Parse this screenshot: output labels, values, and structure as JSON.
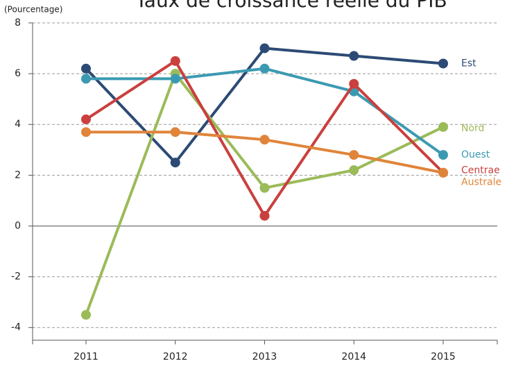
{
  "chart_data": {
    "type": "line",
    "title": "Taux de croissance réelle du PIB",
    "y_axis_label": "(Pourcentage)",
    "categories": [
      "2011",
      "2012",
      "2013",
      "2014",
      "2015"
    ],
    "series": [
      {
        "name": "Est",
        "color": "#2c4a75",
        "values": [
          6.2,
          2.5,
          7.0,
          6.7,
          6.4
        ]
      },
      {
        "name": "Nord",
        "color": "#9bbb59",
        "values": [
          -3.5,
          6.0,
          1.5,
          2.2,
          3.9
        ]
      },
      {
        "name": "Ouest",
        "color": "#3b9ab2",
        "values": [
          5.8,
          5.8,
          6.2,
          5.3,
          2.8
        ]
      },
      {
        "name": "Centrae",
        "color": "#c9403e",
        "values": [
          4.2,
          6.5,
          0.4,
          5.6,
          2.1
        ]
      },
      {
        "name": "Australe",
        "color": "#e0843a",
        "values": [
          3.7,
          3.7,
          3.4,
          2.8,
          2.1
        ]
      }
    ],
    "ylim": [
      -4.5,
      8
    ],
    "yticks": [
      -4,
      -2,
      0,
      2,
      4,
      6,
      8
    ],
    "grid": true
  }
}
